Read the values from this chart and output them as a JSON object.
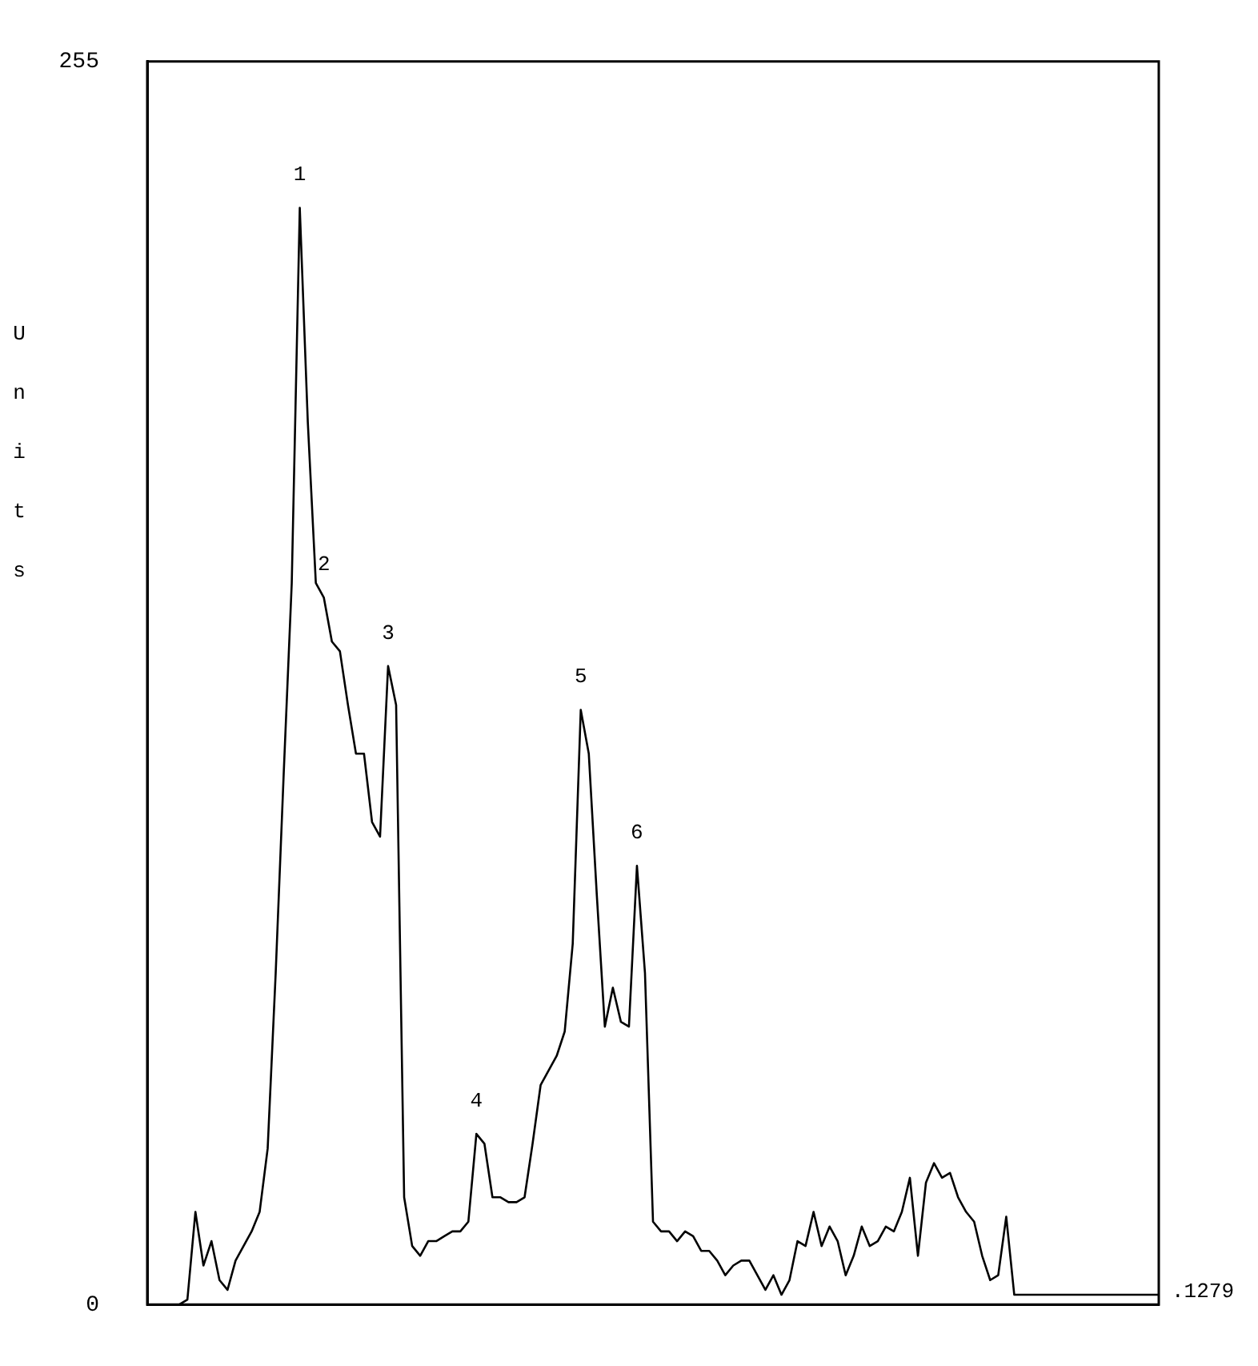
{
  "chart_data": {
    "type": "line",
    "ylabel": "Units",
    "color": "#000000",
    "marker": "none",
    "line_style": "solid",
    "tick_labels": "y",
    "ylim": [
      0,
      255
    ],
    "yticks": [
      0,
      255
    ],
    "categories": [
      null,
      null,
      null,
      null,
      null,
      null,
      null,
      null,
      null,
      null,
      null,
      null,
      null,
      null,
      null,
      null,
      null,
      null,
      null,
      null,
      null,
      null,
      null,
      null,
      null,
      null,
      null,
      null,
      null,
      null,
      null,
      null,
      null,
      null,
      null,
      null,
      null,
      null,
      null,
      null,
      null,
      null,
      null,
      null,
      null,
      null,
      null,
      null,
      null,
      null,
      null,
      null,
      null,
      null,
      null,
      null,
      null,
      null,
      null,
      null,
      null,
      null,
      null,
      null,
      null,
      null,
      null,
      null,
      null,
      null,
      null,
      null,
      null,
      null,
      null,
      null,
      null,
      null,
      null,
      null,
      null,
      null,
      null,
      null,
      null,
      null,
      null,
      null,
      null,
      null,
      null,
      null,
      null,
      null,
      null,
      null,
      null,
      null,
      null,
      null,
      null,
      null,
      null,
      null,
      null,
      null,
      null,
      null,
      null,
      null,
      null,
      null,
      null,
      null,
      null,
      null,
      null,
      null,
      null,
      null,
      null,
      null,
      null,
      null,
      null,
      null,
      null
    ],
    "values": [
      0,
      0,
      0,
      0,
      0,
      1,
      19,
      8,
      13,
      5,
      3,
      9,
      12,
      15,
      19,
      32,
      68,
      109,
      148,
      225,
      181,
      148,
      145,
      136,
      134,
      123,
      113,
      113,
      99,
      96,
      131,
      123,
      22,
      12,
      10,
      13,
      13,
      14,
      15,
      15,
      17,
      35,
      33,
      22,
      22,
      21,
      21,
      22,
      33,
      45,
      48,
      51,
      56,
      74,
      122,
      113,
      84,
      57,
      65,
      58,
      57,
      90,
      68,
      17,
      15,
      15,
      13,
      15,
      14,
      11,
      11,
      9,
      6,
      8,
      9,
      9,
      6,
      3,
      6,
      2,
      5,
      13,
      12,
      19,
      12,
      16,
      13,
      6,
      10,
      16,
      12,
      13,
      16,
      15,
      19,
      26,
      10,
      25,
      29,
      26,
      27,
      22,
      19,
      17,
      10,
      5,
      6,
      18,
      2,
      2,
      2,
      2,
      2,
      2,
      2,
      2,
      2,
      2,
      2,
      2,
      2,
      2,
      2,
      2,
      2,
      2,
      2
    ],
    "annotations": [
      {
        "text": "1",
        "y": 225
      },
      {
        "text": "2",
        "y": 145
      },
      {
        "text": "3",
        "y": 131
      },
      {
        "text": "4",
        "y": 35
      },
      {
        "text": "5",
        "y": 122
      },
      {
        "text": "6",
        "y": 90
      },
      ".1279"
    ]
  }
}
